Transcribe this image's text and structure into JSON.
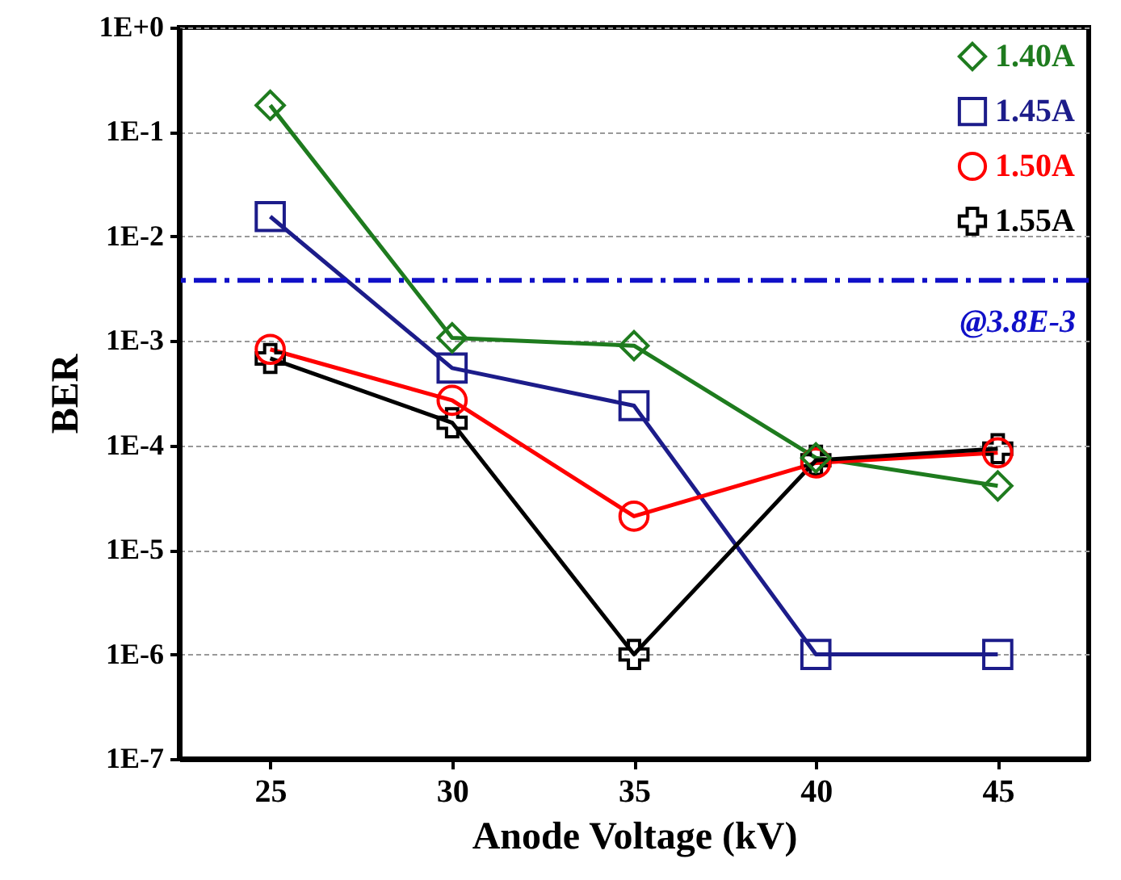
{
  "chart_data": {
    "type": "line",
    "xlabel": "Anode Voltage (kV)",
    "ylabel": "BER",
    "x": [
      25,
      30,
      35,
      40,
      45
    ],
    "series": [
      {
        "name": "1.40A",
        "color": "#1e7b1e",
        "marker": "diamond",
        "values": [
          0.18,
          0.00107,
          0.0009,
          7.6e-05,
          4.1e-05
        ]
      },
      {
        "name": "1.45A",
        "color": "#1c1c8a",
        "marker": "square",
        "values": [
          0.0155,
          0.00055,
          0.00024,
          1e-06,
          1e-06
        ]
      },
      {
        "name": "1.50A",
        "color": "#ff0000",
        "marker": "circle",
        "values": [
          0.00083,
          0.00027,
          2.1e-05,
          6.8e-05,
          8.5e-05
        ]
      },
      {
        "name": "1.55A",
        "color": "#000000",
        "marker": "cross",
        "values": [
          0.00068,
          0.000165,
          1e-06,
          7.2e-05,
          9.3e-05
        ]
      }
    ],
    "log": "y",
    "xlim": [
      22.5,
      47.5
    ],
    "xticks": [
      25,
      30,
      35,
      40,
      45
    ],
    "ylim": [
      1e-07,
      1
    ],
    "yticks": [
      {
        "value": 1e-07,
        "label": "1E-7"
      },
      {
        "value": 1e-06,
        "label": "1E-6"
      },
      {
        "value": 1e-05,
        "label": "1E-5"
      },
      {
        "value": 0.0001,
        "label": "1E-4"
      },
      {
        "value": 0.001,
        "label": "1E-3"
      },
      {
        "value": 0.01,
        "label": "1E-2"
      },
      {
        "value": 0.1,
        "label": "1E-1"
      },
      {
        "value": 1,
        "label": "1E+0"
      }
    ],
    "ref_lines": [
      {
        "axis": "y",
        "value": 0.0038,
        "label": "@3.8E-3",
        "color": "#1010c8",
        "line_style": "dashed"
      }
    ],
    "grid": "y",
    "legend": "top right",
    "line_style": "solid"
  }
}
